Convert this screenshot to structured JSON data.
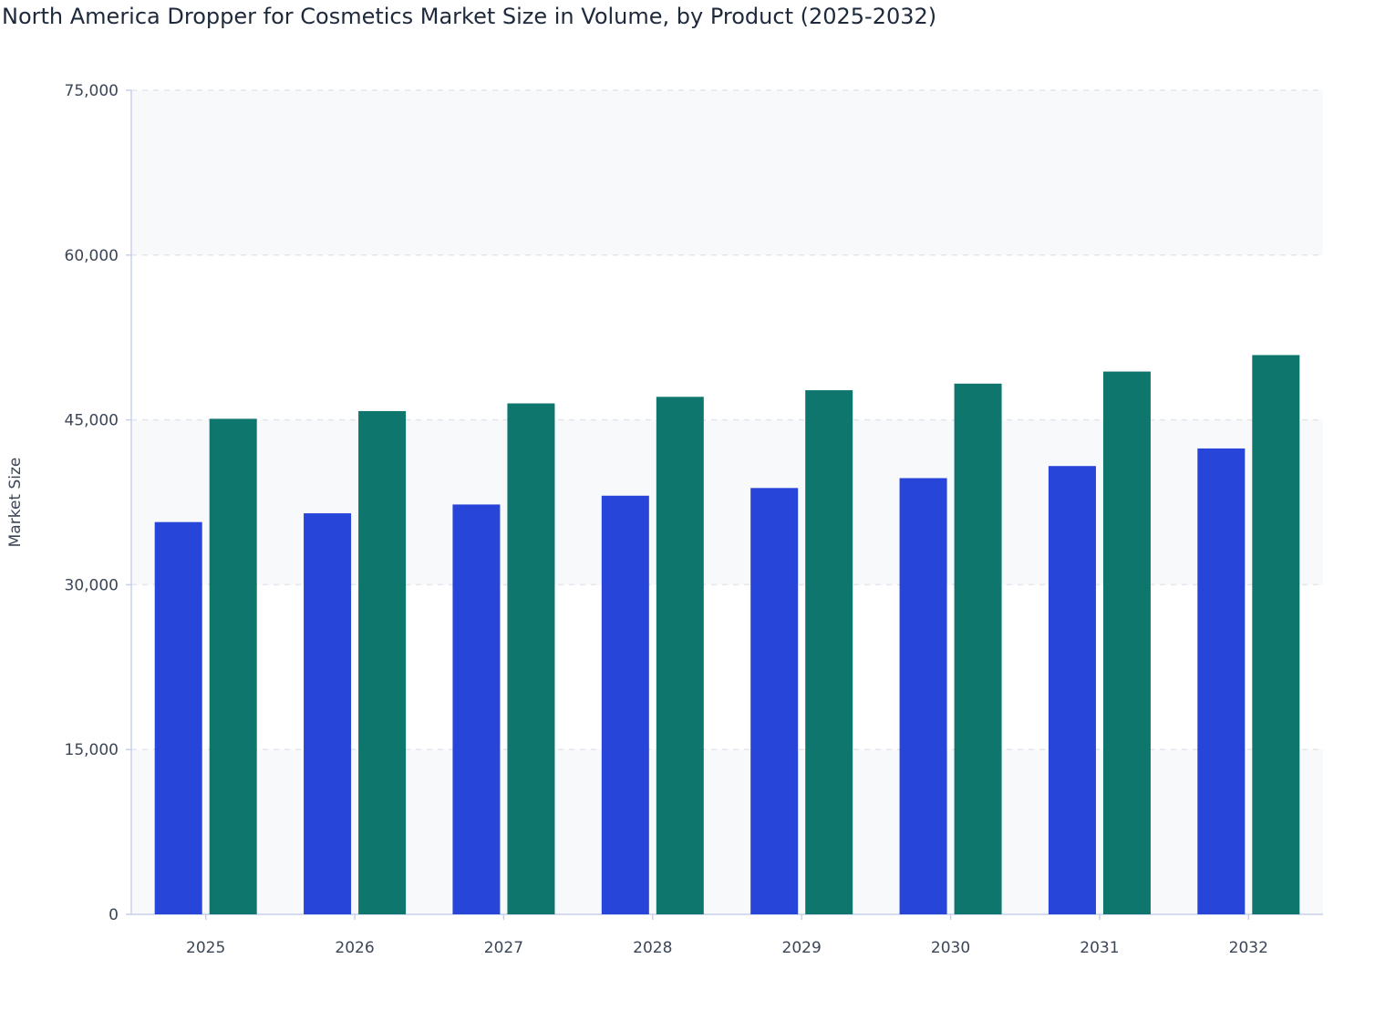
{
  "chart_data": {
    "type": "bar",
    "title": "North America Dropper for Cosmetics Market Size in Volume, by Product (2025-2032)",
    "xlabel": "",
    "ylabel": "Market Size",
    "categories": [
      "2025",
      "2026",
      "2027",
      "2028",
      "2029",
      "2030",
      "2031",
      "2032"
    ],
    "ylim": [
      0,
      75000
    ],
    "yticks": [
      0,
      15000,
      30000,
      45000,
      60000,
      75000
    ],
    "ytick_labels": [
      "0",
      "15,000",
      "30,000",
      "45,000",
      "60,000",
      "75,000"
    ],
    "grid": true,
    "legend": "none",
    "series": [
      {
        "color": "#2745d9",
        "values": [
          35700,
          36500,
          37300,
          38100,
          38800,
          39700,
          40800,
          42400
        ]
      },
      {
        "color": "#0f766e",
        "values": [
          45100,
          45800,
          46500,
          47100,
          47700,
          48300,
          49400,
          50900
        ]
      }
    ]
  }
}
